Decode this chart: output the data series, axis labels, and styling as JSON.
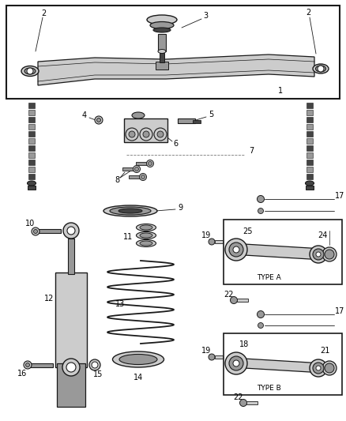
{
  "bg_color": "#ffffff",
  "line_color": "#1a1a1a",
  "gray": "#777777",
  "lt_gray": "#cccccc",
  "md_gray": "#999999",
  "dk_gray": "#444444",
  "fig_width": 4.38,
  "fig_height": 5.33,
  "dpi": 100
}
